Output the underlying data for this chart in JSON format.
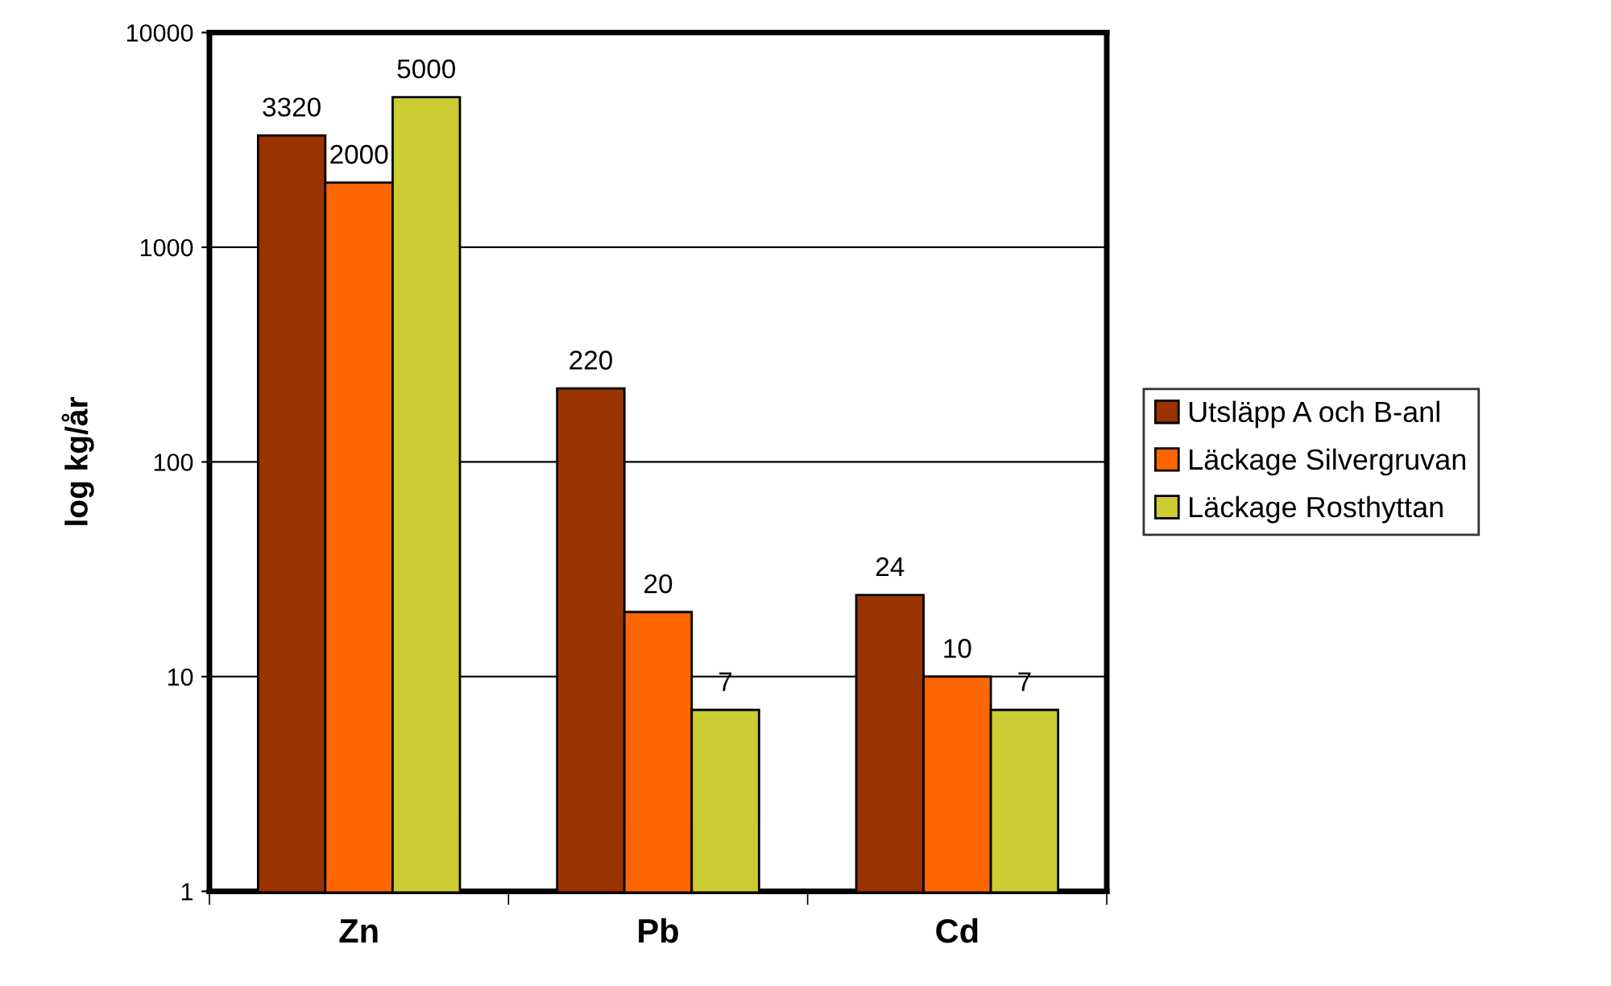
{
  "chart_data": {
    "type": "bar",
    "ylabel": "log kg/år",
    "categories": [
      "Zn",
      "Pb",
      "Cd"
    ],
    "series": [
      {
        "name": "Utsläpp A och B-anl",
        "color": "#993300",
        "values": [
          3320,
          220,
          24
        ]
      },
      {
        "name": "Läckage Silvergruvan",
        "color": "#ff6600",
        "values": [
          2000,
          20,
          10
        ]
      },
      {
        "name": "Läckage Rosthyttan",
        "color": "#cccc33",
        "values": [
          5000,
          7,
          7
        ]
      }
    ],
    "log": true,
    "ylim": [
      1,
      10000
    ],
    "yticks": [
      1,
      10,
      100,
      1000,
      10000
    ],
    "grid": "y",
    "legend": "right",
    "data_labels": true
  }
}
